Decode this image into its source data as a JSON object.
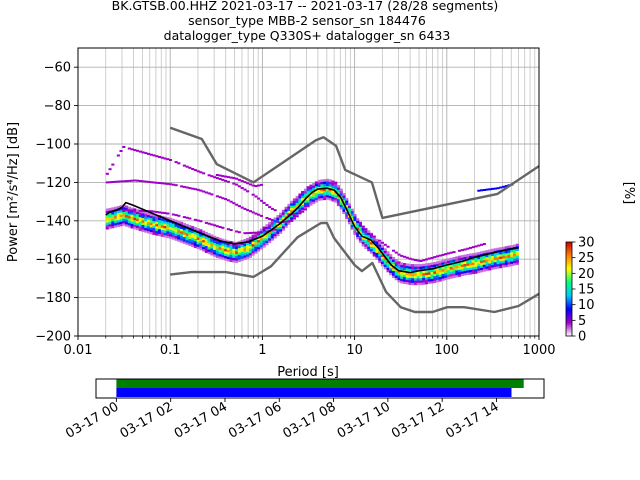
{
  "title_lines": [
    "BK.GTSB.00.HHZ   2021-03-17 -- 2021-03-17  (28/28 segments)",
    "sensor_type MBB-2 sensor_sn 184476",
    "datalogger_type Q330S+ datalogger_sn 6433"
  ],
  "chart_data": [
    {
      "type": "heatmap",
      "xlabel": "Period [s]",
      "ylabel": "Power [m²/s⁴/Hz] [dB]",
      "x_scale": "log",
      "xlim": [
        0.01,
        1000
      ],
      "ylim": [
        -200,
        -50
      ],
      "x_ticks": [
        {
          "value": 0.01,
          "label": "0.01"
        },
        {
          "value": 0.1,
          "label": "0.1"
        },
        {
          "value": 1,
          "label": "1"
        },
        {
          "value": 10,
          "label": "10"
        },
        {
          "value": 100,
          "label": "100"
        },
        {
          "value": 1000,
          "label": "1000"
        }
      ],
      "y_ticks": [
        {
          "value": -60,
          "label": "−60"
        },
        {
          "value": -80,
          "label": "−80"
        },
        {
          "value": -100,
          "label": "−100"
        },
        {
          "value": -120,
          "label": "−120"
        },
        {
          "value": -140,
          "label": "−140"
        },
        {
          "value": -160,
          "label": "−160"
        },
        {
          "value": -180,
          "label": "−180"
        },
        {
          "value": -200,
          "label": "−200"
        }
      ],
      "grid": true,
      "colorbar": {
        "label": "[%]",
        "min": 0,
        "max": 30,
        "ticks": [
          {
            "value": 0,
            "label": "0"
          },
          {
            "value": 5,
            "label": "5"
          },
          {
            "value": 10,
            "label": "10"
          },
          {
            "value": 15,
            "label": "15"
          },
          {
            "value": 20,
            "label": "20"
          },
          {
            "value": 25,
            "label": "25"
          },
          {
            "value": 30,
            "label": "30"
          }
        ],
        "colors": [
          "#ffffff",
          "#a000c8",
          "#0000ff",
          "#00c8ff",
          "#00ff80",
          "#ffff00",
          "#ff8000",
          "#c80000"
        ]
      },
      "series": [
        {
          "style": "noise-model",
          "color": "#666666",
          "x": [
            0.1,
            0.22,
            0.32,
            0.8,
            3.8,
            4.6,
            6.3,
            7.9,
            15.4,
            20,
            354.8,
            1000
          ],
          "y": [
            -91.5,
            -97.4,
            -110.5,
            -120,
            -98,
            -96.5,
            -101,
            -113.5,
            -120,
            -138.5,
            -126,
            -111.5
          ]
        },
        {
          "style": "noise-model",
          "color": "#666666",
          "x": [
            0.1,
            0.17,
            0.4,
            0.8,
            1.24,
            2.4,
            4.3,
            5.0,
            6.0,
            10,
            12,
            15.6,
            21.9,
            31.6,
            45,
            70,
            101,
            154,
            328,
            600,
            1000
          ],
          "y": [
            -168,
            -166.7,
            -166.7,
            -169.2,
            -163.7,
            -148.6,
            -141.2,
            -141.1,
            -149,
            -163,
            -166.2,
            -162,
            -177,
            -185,
            -187.5,
            -187.5,
            -185,
            -185,
            -187.5,
            -184.4,
            -178
          ]
        },
        {
          "style": "mode",
          "color": "#000000",
          "x": [
            0.02,
            0.022,
            0.026,
            0.03,
            0.033,
            0.04,
            0.06,
            0.1,
            0.2,
            0.35,
            0.5,
            0.7,
            1.0,
            1.5,
            2.0,
            2.5,
            3.0,
            3.5,
            4.0,
            5.0,
            6.0,
            7.0,
            8.0,
            10,
            12,
            15,
            18,
            20,
            25,
            30,
            40,
            50,
            70,
            100,
            150,
            200,
            300,
            450,
            600
          ],
          "y": [
            -137,
            -135.5,
            -134.5,
            -133,
            -130.5,
            -132,
            -135.5,
            -140,
            -146,
            -150.5,
            -152,
            -151,
            -148,
            -142,
            -137,
            -132.5,
            -128,
            -125,
            -123.5,
            -123,
            -124,
            -127.5,
            -133,
            -143,
            -148,
            -150,
            -154,
            -157,
            -163,
            -166,
            -167,
            -166,
            -165,
            -163,
            -161,
            -159,
            -157,
            -155,
            -154
          ]
        },
        {
          "style": "density-ridge",
          "color": "#00e070",
          "x": [
            0.02,
            0.025,
            0.03,
            0.04,
            0.06,
            0.1,
            0.2,
            0.3,
            0.4,
            0.5,
            0.7,
            1.0,
            1.5,
            2.0,
            3.0,
            4.0,
            5.0,
            6.0,
            7.0,
            8.0,
            10,
            12,
            15,
            20,
            25,
            30,
            40,
            50,
            70,
            100,
            150,
            200,
            300,
            500,
            600
          ],
          "y": [
            -139,
            -138,
            -137,
            -139,
            -141.5,
            -144,
            -149.5,
            -153.5,
            -155.5,
            -156.5,
            -154,
            -148.5,
            -141.5,
            -135,
            -127.5,
            -124,
            -123.5,
            -125,
            -129,
            -134,
            -143,
            -148,
            -152,
            -159,
            -164,
            -167,
            -168,
            -168,
            -167,
            -165,
            -163,
            -162,
            -160,
            -158,
            -157
          ]
        },
        {
          "style": "density-fringe",
          "color": "#a000c8",
          "x": [
            0.02,
            0.03,
            0.05,
            0.1,
            0.2,
            0.3,
            0.5,
            0.8,
            1.2,
            1.7,
            2.5
          ],
          "y": [
            -115.5,
            -101.5,
            -104.5,
            -108.5,
            -114.5,
            -117.5,
            -121,
            -127,
            -133.5,
            -137,
            -136
          ]
        },
        {
          "style": "density-fringe",
          "color": "#a000c8",
          "x": [
            0.02,
            0.04,
            0.1,
            0.2,
            0.4,
            0.6,
            1.0,
            1.5,
            2.0,
            3.0
          ],
          "y": [
            -120,
            -119,
            -121,
            -124,
            -129,
            -133.5,
            -138,
            -141,
            -140,
            -133
          ]
        },
        {
          "style": "density-fringe",
          "color": "#a000c8",
          "x": [
            0.03,
            0.06,
            0.1,
            0.2,
            0.35,
            0.6,
            1.0,
            1.5
          ],
          "y": [
            -134.5,
            -135,
            -136.5,
            -140,
            -143.5,
            -146.5,
            -146,
            -144
          ]
        },
        {
          "style": "density-fringe",
          "color": "#a000c8",
          "x": [
            11,
            15,
            20,
            30,
            40,
            50,
            70,
            100,
            150,
            250
          ],
          "y": [
            -141.5,
            -147.5,
            -152,
            -158,
            -160,
            -161,
            -159,
            -157,
            -155,
            -152
          ]
        },
        {
          "style": "density-fringe",
          "color": "#a000c8",
          "x": [
            0.3,
            0.5,
            0.8,
            1.0
          ],
          "y": [
            -116,
            -118,
            -122,
            -121
          ]
        },
        {
          "style": "density-fringe",
          "color": "#0000ff",
          "x": [
            200,
            350,
            500
          ],
          "y": [
            -124.5,
            -123,
            -121
          ]
        }
      ]
    },
    {
      "type": "bar",
      "chart_role": "data-coverage",
      "x_tick_labels": [
        "03-17 00",
        "03-17 02",
        "03-17 04",
        "03-17 06",
        "03-17 08",
        "03-17 10",
        "03-17 12",
        "03-17 14"
      ],
      "x_tick_hours": [
        0,
        2,
        4,
        6,
        8,
        10,
        12,
        14
      ],
      "xlim_hours": [
        -0.75,
        15.75
      ],
      "series": [
        {
          "color": "#008000",
          "start_hour": 0,
          "end_hour": 15.0
        },
        {
          "color": "#0000ff",
          "start_hour": 0,
          "end_hour": 14.55
        }
      ]
    }
  ]
}
